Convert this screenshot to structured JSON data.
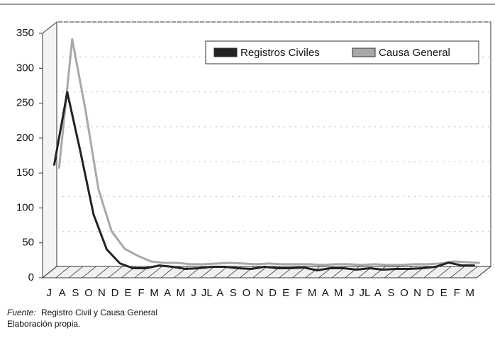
{
  "chart_data": {
    "type": "line",
    "categories": [
      "J",
      "A",
      "S",
      "O",
      "N",
      "D",
      "E",
      "F",
      "M",
      "A",
      "M",
      "J",
      "JL",
      "A",
      "S",
      "O",
      "N",
      "D",
      "E",
      "F",
      "M",
      "A",
      "M",
      "J",
      "JL",
      "A",
      "S",
      "O",
      "N",
      "D",
      "E",
      "F",
      "M"
    ],
    "series": [
      {
        "name": "Registros Civiles",
        "color": "#222222",
        "values": [
          155,
          260,
          175,
          85,
          35,
          15,
          8,
          8,
          12,
          10,
          7,
          8,
          10,
          10,
          8,
          7,
          10,
          8,
          8,
          9,
          5,
          8,
          8,
          6,
          8,
          6,
          7,
          7,
          8,
          10,
          16,
          12,
          12
        ]
      },
      {
        "name": "Causa General",
        "color": "#a8a8a8",
        "values": [
          145,
          330,
          230,
          115,
          55,
          30,
          20,
          12,
          10,
          10,
          8,
          8,
          9,
          10,
          9,
          8,
          9,
          8,
          8,
          8,
          7,
          8,
          8,
          7,
          8,
          7,
          7,
          8,
          8,
          9,
          12,
          11,
          10
        ]
      }
    ],
    "ylim": [
      0,
      350
    ],
    "yticks": [
      0,
      50,
      100,
      150,
      200,
      250,
      300,
      350
    ],
    "grid": true,
    "legend": "upper right",
    "source_label": "Fuente:",
    "source": "Registro Civil y Causa General",
    "note": "Elaboración propia."
  }
}
